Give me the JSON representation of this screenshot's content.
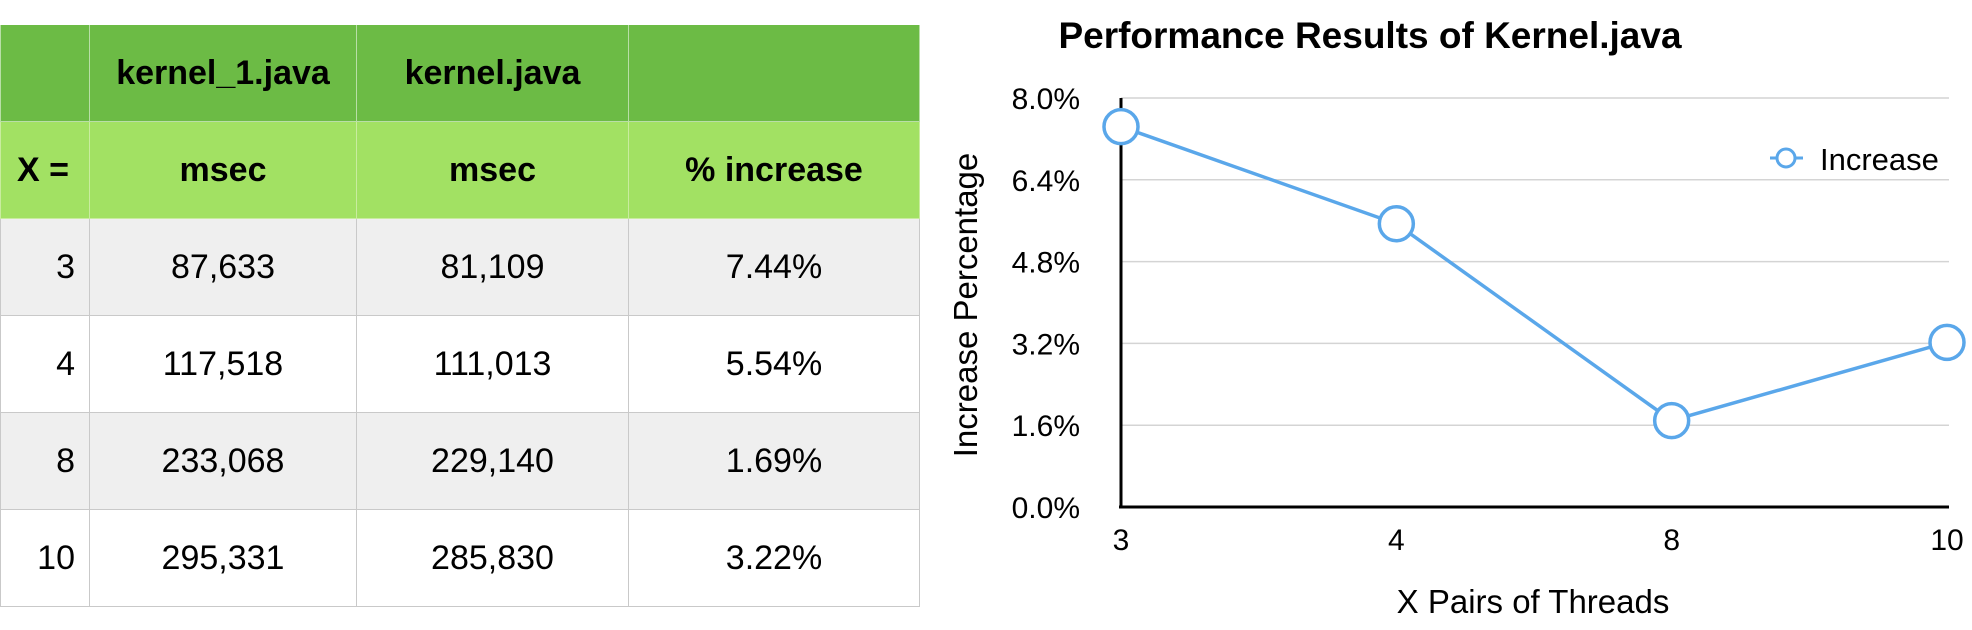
{
  "table": {
    "header_top": [
      "",
      "kernel_1.java",
      "kernel.java",
      ""
    ],
    "header_sub": [
      "X =",
      "msec",
      "msec",
      "% increase"
    ],
    "rows": [
      {
        "x": "3",
        "k1": "87,633",
        "k": "81,109",
        "pct": "7.44%"
      },
      {
        "x": "4",
        "k1": "117,518",
        "k": "111,013",
        "pct": "5.54%"
      },
      {
        "x": "8",
        "k1": "233,068",
        "k": "229,140",
        "pct": "1.69%"
      },
      {
        "x": "10",
        "k1": "295,331",
        "k": "285,830",
        "pct": "3.22%"
      }
    ]
  },
  "chart_data": {
    "type": "line",
    "title": "Performance Results of Kernel.java",
    "xlabel": "X Pairs of Threads",
    "ylabel": "Increase Percentage",
    "categories": [
      "3",
      "4",
      "8",
      "10"
    ],
    "series": [
      {
        "name": "Increase",
        "values": [
          7.44,
          5.54,
          1.69,
          3.22
        ],
        "color": "#5aa7ea"
      }
    ],
    "ylim": [
      0,
      8
    ],
    "yticks": [
      0,
      1.6,
      3.2,
      4.8,
      6.4,
      8.0
    ],
    "ytick_labels": [
      "0.0%",
      "1.6%",
      "3.2%",
      "4.8%",
      "6.4%",
      "8.0%"
    ],
    "grid": true,
    "legend_position": "top-right"
  }
}
